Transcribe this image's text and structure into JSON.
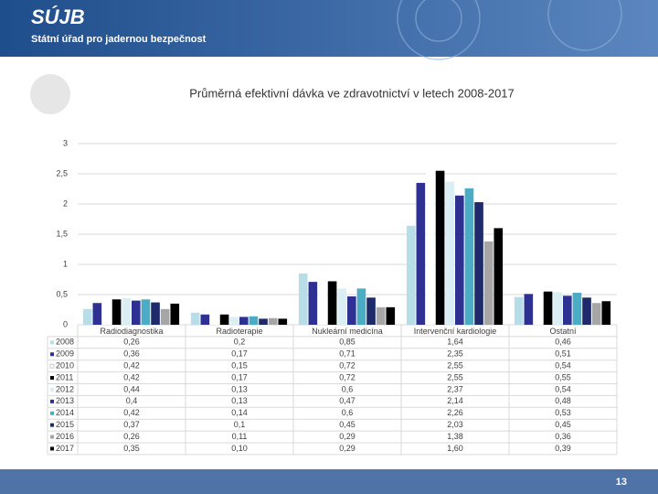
{
  "header": {
    "logo": "SÚJB",
    "org": "Státní úřad pro jadernou bezpečnost"
  },
  "footer": {
    "page": "13"
  },
  "chart_data": {
    "type": "bar",
    "title": "Průměrná efektivní dávka ve zdravotnictví v letech 2008-2017",
    "categories": [
      "Radiodiagnostika",
      "Radioterapie",
      "Nukleární medicína",
      "Intervenční kardiologie",
      "Ostatní"
    ],
    "ylim": [
      0,
      3
    ],
    "yticks": [
      0,
      {
        "value": 0.5,
        "label": "0,5"
      },
      1,
      {
        "value": 1.5,
        "label": "1,5"
      },
      2,
      {
        "value": 2.5,
        "label": "2,5"
      },
      3
    ],
    "grid": true,
    "series": [
      {
        "name": "2008",
        "color": "#b7dde8",
        "values": [
          0.26,
          0.2,
          0.85,
          1.64,
          0.46
        ],
        "value_labels": [
          "0,26",
          "0,2",
          "0,85",
          "1,64",
          "0,46"
        ]
      },
      {
        "name": "2009",
        "color": "#2e3192",
        "values": [
          0.36,
          0.17,
          0.71,
          2.35,
          0.51
        ],
        "value_labels": [
          "0,36",
          "0,17",
          "0,71",
          "2,35",
          "0,51"
        ]
      },
      {
        "name": "2010",
        "color": "#ffffff",
        "values": [
          0.42,
          0.15,
          0.72,
          2.55,
          0.54
        ],
        "value_labels": [
          "0,42",
          "0,15",
          "0,72",
          "2,55",
          "0,54"
        ]
      },
      {
        "name": "2011",
        "color": "#000000",
        "values": [
          0.42,
          0.17,
          0.72,
          2.55,
          0.55
        ],
        "value_labels": [
          "0,42",
          "0,17",
          "0,72",
          "2,55",
          "0,55"
        ]
      },
      {
        "name": "2012",
        "color": "#dbeef3",
        "values": [
          0.44,
          0.13,
          0.6,
          2.37,
          0.54
        ],
        "value_labels": [
          "0,44",
          "0,13",
          "0,6",
          "2,37",
          "0,54"
        ]
      },
      {
        "name": "2013",
        "color": "#2e3192",
        "values": [
          0.4,
          0.13,
          0.47,
          2.14,
          0.48
        ],
        "value_labels": [
          "0,4",
          "0,13",
          "0,47",
          "2,14",
          "0,48"
        ]
      },
      {
        "name": "2014",
        "color": "#4bacc6",
        "values": [
          0.42,
          0.14,
          0.6,
          2.26,
          0.53
        ],
        "value_labels": [
          "0,42",
          "0,14",
          "0,6",
          "2,26",
          "0,53"
        ]
      },
      {
        "name": "2015",
        "color": "#1f2a6b",
        "values": [
          0.37,
          0.1,
          0.45,
          2.03,
          0.45
        ],
        "value_labels": [
          "0,37",
          "0,1",
          "0,45",
          "2,03",
          "0,45"
        ]
      },
      {
        "name": "2016",
        "color": "#a6a6a6",
        "values": [
          0.26,
          0.11,
          0.29,
          1.38,
          0.36
        ],
        "value_labels": [
          "0,26",
          "0,11",
          "0,29",
          "1,38",
          "0,36"
        ]
      },
      {
        "name": "2017",
        "color": "#000000",
        "values": [
          0.35,
          0.1,
          0.29,
          1.6,
          0.39
        ],
        "value_labels": [
          "0,35",
          "0,10",
          "0,29",
          "1,60",
          "0,39"
        ]
      }
    ]
  }
}
